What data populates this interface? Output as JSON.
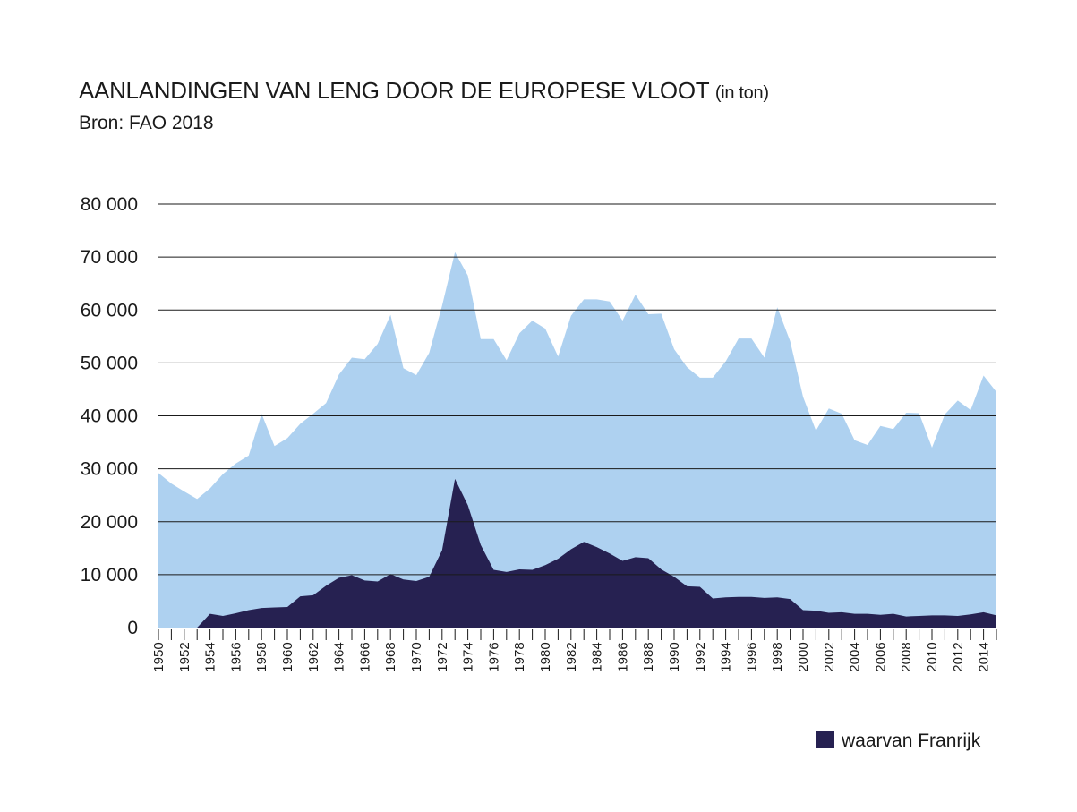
{
  "chart_data": {
    "type": "area",
    "title": "AANLANDINGEN VAN LENG DOOR DE EUROPESE VLOOT",
    "title_unit": "(in ton)",
    "subtitle": "Bron: FAO 2018",
    "x": [
      1950,
      1951,
      1952,
      1953,
      1954,
      1955,
      1956,
      1957,
      1958,
      1959,
      1960,
      1961,
      1962,
      1963,
      1964,
      1965,
      1966,
      1967,
      1968,
      1969,
      1970,
      1971,
      1972,
      1973,
      1974,
      1975,
      1976,
      1977,
      1978,
      1979,
      1980,
      1981,
      1982,
      1983,
      1984,
      1985,
      1986,
      1987,
      1988,
      1989,
      1990,
      1991,
      1992,
      1993,
      1994,
      1995,
      1996,
      1997,
      1998,
      1999,
      2000,
      2001,
      2002,
      2003,
      2004,
      2005,
      2006,
      2007,
      2008,
      2009,
      2010,
      2011,
      2012,
      2013,
      2014,
      2015
    ],
    "x_tick_labels": [
      "1950",
      "1952",
      "1954",
      "1956",
      "1958",
      "1960",
      "1962",
      "1964",
      "1966",
      "1968",
      "1970",
      "1972",
      "1974",
      "1976",
      "1978",
      "1980",
      "1982",
      "1984",
      "1986",
      "1988",
      "1990",
      "1992",
      "1994",
      "1996",
      "1998",
      "2000",
      "2002",
      "2004",
      "2006",
      "2008",
      "2010",
      "2012",
      "2014"
    ],
    "y_tick_labels": [
      "0",
      "10 000",
      "20 000",
      "30 000",
      "40 000",
      "50 000",
      "60 000",
      "70 000",
      "80 000"
    ],
    "ylim": [
      0,
      80000
    ],
    "grid": true,
    "legend_position": "bottom-right",
    "series": [
      {
        "color": "#aed1f0",
        "values": [
          29200,
          27200,
          25700,
          24300,
          26300,
          29000,
          31000,
          32500,
          40400,
          34300,
          35800,
          38500,
          40400,
          42400,
          47800,
          51000,
          50700,
          53600,
          59100,
          49000,
          47700,
          51900,
          60800,
          70900,
          66500,
          54500,
          54500,
          50500,
          55600,
          58000,
          56500,
          51200,
          58900,
          62000,
          62000,
          61600,
          58000,
          62900,
          59200,
          59300,
          52600,
          49200,
          47200,
          47200,
          50300,
          54600,
          54600,
          51000,
          60500,
          54100,
          43600,
          37200,
          41400,
          40400,
          35400,
          34500,
          38100,
          37500,
          40600,
          40500,
          34000,
          40300,
          42900,
          41100,
          47600,
          44500
        ]
      },
      {
        "name": "waarvan Franrijk",
        "color": "#262151",
        "values": [
          0,
          0,
          0,
          0,
          2600,
          2200,
          2700,
          3300,
          3700,
          3800,
          3900,
          5900,
          6100,
          7900,
          9400,
          9900,
          8900,
          8700,
          10100,
          9100,
          8800,
          9600,
          14600,
          28100,
          23100,
          15600,
          10900,
          10500,
          11000,
          10900,
          11800,
          13000,
          14800,
          16200,
          15200,
          14000,
          12600,
          13300,
          13100,
          11000,
          9600,
          7800,
          7700,
          5500,
          5700,
          5800,
          5800,
          5600,
          5700,
          5400,
          3300,
          3200,
          2800,
          2900,
          2600,
          2600,
          2400,
          2600,
          2100,
          2200,
          2300,
          2300,
          2200,
          2500,
          2900,
          2300
        ]
      }
    ]
  }
}
